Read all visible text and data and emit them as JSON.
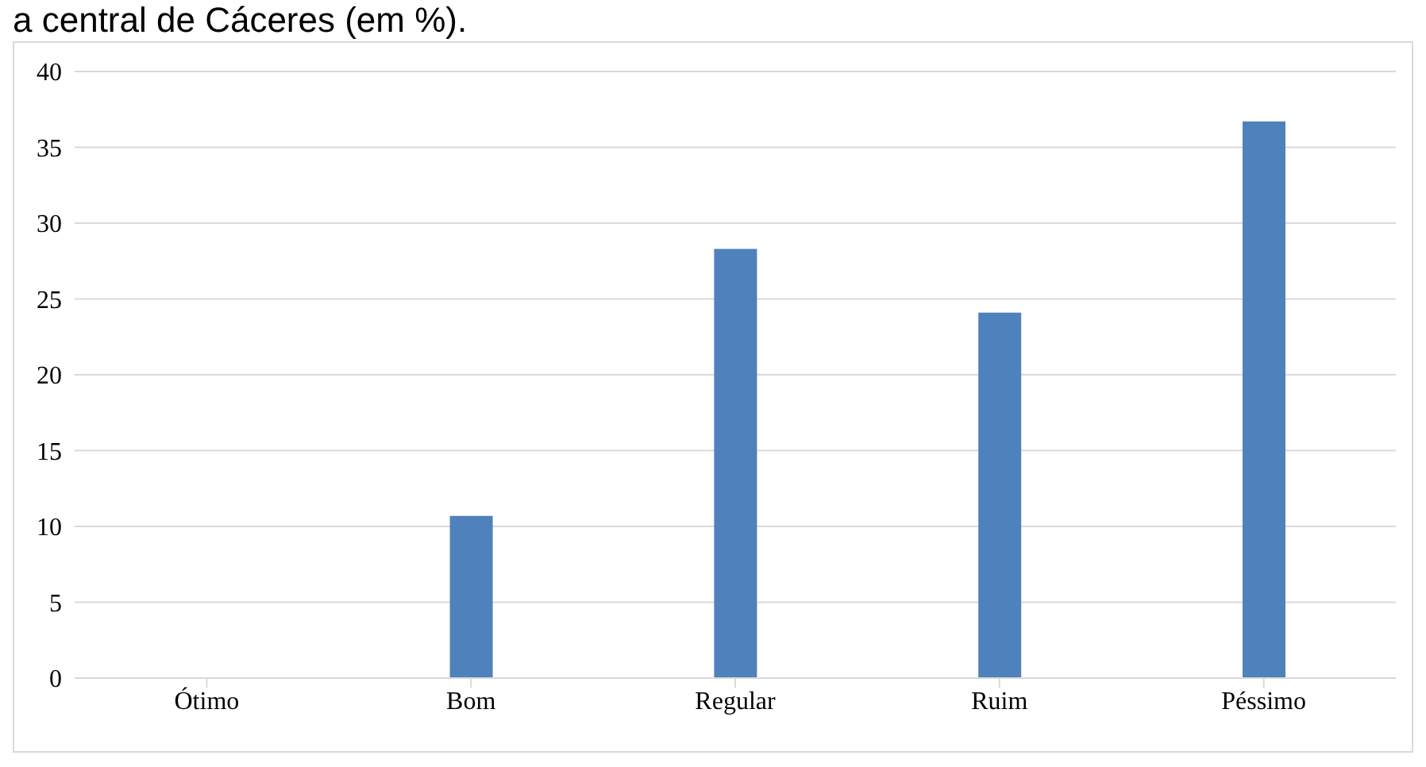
{
  "chart_data": {
    "type": "bar",
    "title": "a central de Cáceres (em %).",
    "categories": [
      "Ótimo",
      "Bom",
      "Regular",
      "Ruim",
      "Péssimo"
    ],
    "values": [
      0,
      10.7,
      28.3,
      24.1,
      36.7
    ],
    "color": "#4f81bd",
    "ylim": [
      0,
      40
    ],
    "yticks": [
      0,
      5,
      10,
      15,
      20,
      25,
      30,
      35,
      40
    ],
    "grid": "y"
  }
}
